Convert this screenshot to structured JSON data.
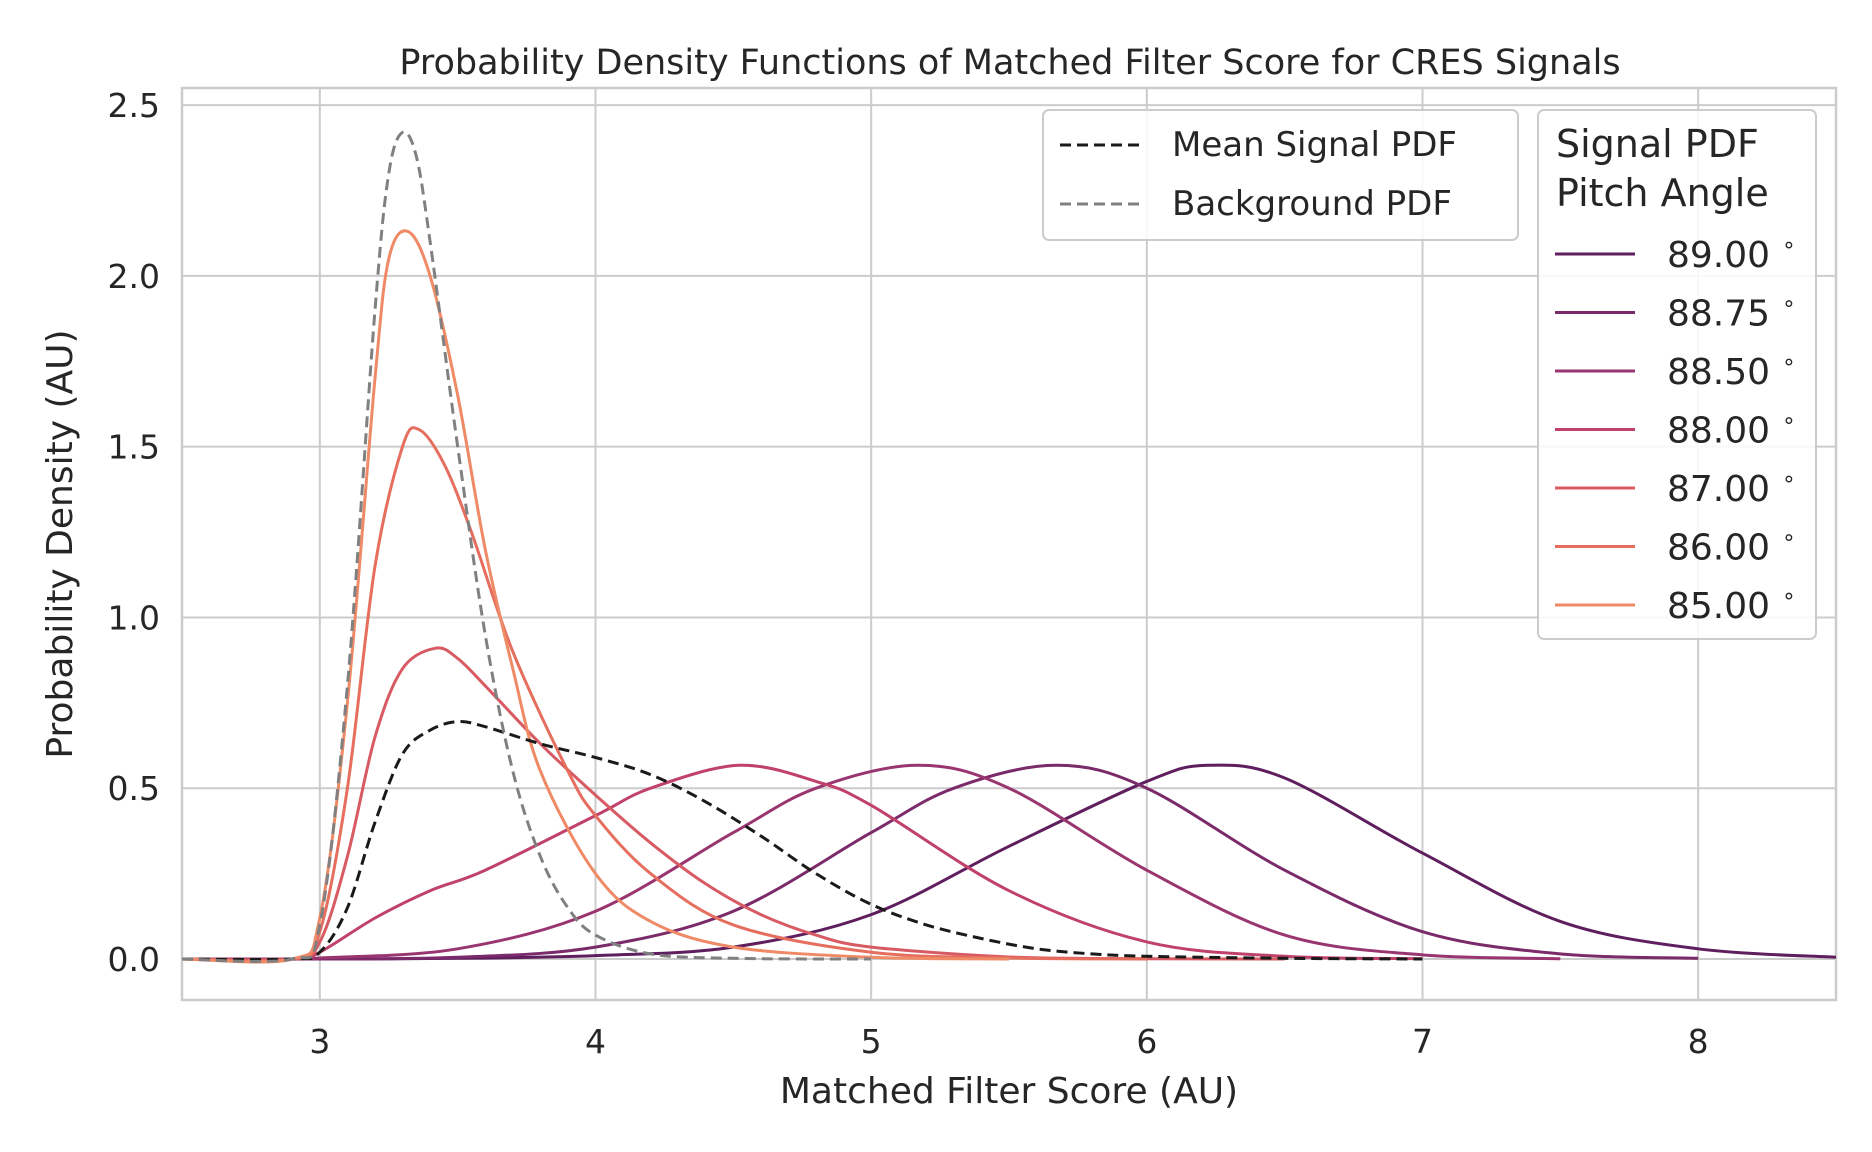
{
  "chart_data": {
    "type": "line",
    "title": "Probability Density Functions of Matched Filter Score for CRES Signals",
    "xlabel": "Matched Filter Score (AU)",
    "ylabel": "Probability Density (AU)",
    "xlim": [
      2.5,
      8.5
    ],
    "ylim": [
      -0.12,
      2.55
    ],
    "xticks": [
      3,
      4,
      5,
      6,
      7,
      8
    ],
    "xtick_labels": [
      "3",
      "4",
      "5",
      "6",
      "7",
      "8"
    ],
    "yticks": [
      0.0,
      0.5,
      1.0,
      1.5,
      2.0,
      2.5
    ],
    "ytick_labels": [
      "0.0",
      "0.5",
      "1.0",
      "1.5",
      "2.0",
      "2.5"
    ],
    "grid": true,
    "legends": [
      {
        "placement": "top-right (left of pitch-angle legend)",
        "entries": [
          "Mean Signal PDF",
          "Background PDF"
        ]
      },
      {
        "placement": "top-right",
        "title_line1": "Signal PDF",
        "title_line2": "Pitch Angle",
        "entries": [
          "89.00$^\\circ$",
          "88.75$^\\circ$",
          "88.50$^\\circ$",
          "88.00$^\\circ$",
          "87.00$^\\circ$",
          "86.00$^\\circ$",
          "85.00$^\\circ$"
        ],
        "entry_labels": [
          "89.00",
          "88.75",
          "88.50",
          "88.00",
          "87.00",
          "86.00",
          "85.00"
        ],
        "degree_symbol": "∘"
      }
    ],
    "series": [
      {
        "name": "Mean Signal PDF",
        "style": "dashed",
        "color": "#1a1a1a",
        "x": [
          2.5,
          2.9,
          3.0,
          3.1,
          3.2,
          3.3,
          3.4,
          3.5,
          3.6,
          3.8,
          4.0,
          4.2,
          4.4,
          4.6,
          4.8,
          5.0,
          5.2,
          5.4,
          5.6,
          5.8,
          6.0,
          6.5,
          7.0
        ],
        "y": [
          0.0,
          0.0,
          0.02,
          0.15,
          0.4,
          0.6,
          0.67,
          0.695,
          0.68,
          0.63,
          0.59,
          0.54,
          0.46,
          0.36,
          0.25,
          0.16,
          0.1,
          0.06,
          0.03,
          0.015,
          0.008,
          0.002,
          0.0
        ]
      },
      {
        "name": "Background PDF",
        "style": "dashed",
        "color": "#808080",
        "x": [
          2.5,
          2.9,
          3.0,
          3.1,
          3.2,
          3.25,
          3.3,
          3.35,
          3.4,
          3.5,
          3.6,
          3.7,
          3.8,
          3.9,
          4.0,
          4.2,
          4.5,
          5.0
        ],
        "y": [
          0.0,
          0.0,
          0.1,
          0.8,
          1.9,
          2.3,
          2.42,
          2.35,
          2.1,
          1.5,
          0.95,
          0.55,
          0.3,
          0.15,
          0.07,
          0.015,
          0.002,
          0.0
        ]
      },
      {
        "name": "89.00$^\\circ$",
        "style": "solid",
        "color": "#5f1e5e",
        "x": [
          2.5,
          3.0,
          3.5,
          4.0,
          4.5,
          5.0,
          5.5,
          6.0,
          6.22,
          6.5,
          7.0,
          7.5,
          8.0,
          8.5
        ],
        "y": [
          0.0,
          0.0,
          0.002,
          0.01,
          0.035,
          0.13,
          0.33,
          0.52,
          0.567,
          0.53,
          0.31,
          0.11,
          0.03,
          0.005
        ]
      },
      {
        "name": "88.75$^\\circ$",
        "style": "solid",
        "color": "#7b2a6a",
        "x": [
          2.5,
          3.0,
          3.5,
          4.0,
          4.5,
          5.0,
          5.3,
          5.67,
          6.0,
          6.5,
          7.0,
          7.5,
          8.0
        ],
        "y": [
          0.0,
          0.0,
          0.005,
          0.035,
          0.14,
          0.37,
          0.5,
          0.567,
          0.5,
          0.26,
          0.08,
          0.015,
          0.002
        ]
      },
      {
        "name": "88.50$^\\circ$",
        "style": "solid",
        "color": "#993670",
        "x": [
          2.5,
          2.9,
          3.0,
          3.5,
          4.0,
          4.5,
          4.8,
          5.17,
          5.5,
          6.0,
          6.5,
          7.0,
          7.5
        ],
        "y": [
          0.0,
          0.0,
          0.003,
          0.03,
          0.14,
          0.37,
          0.5,
          0.567,
          0.5,
          0.26,
          0.07,
          0.012,
          0.001
        ]
      },
      {
        "name": "88.00$^\\circ$",
        "style": "solid",
        "color": "#c0426b",
        "x": [
          2.5,
          2.9,
          3.0,
          3.2,
          3.4,
          3.6,
          4.0,
          4.2,
          4.52,
          4.8,
          5.0,
          5.5,
          6.0,
          6.5,
          7.0
        ],
        "y": [
          0.0,
          0.0,
          0.02,
          0.12,
          0.2,
          0.26,
          0.42,
          0.5,
          0.567,
          0.52,
          0.45,
          0.2,
          0.05,
          0.008,
          0.001
        ]
      },
      {
        "name": "87.00$^\\circ$",
        "style": "solid",
        "color": "#d85a63",
        "x": [
          2.5,
          2.9,
          3.0,
          3.1,
          3.2,
          3.3,
          3.42,
          3.5,
          3.6,
          3.8,
          4.0,
          4.2,
          4.4,
          4.6,
          4.8,
          5.0,
          5.5,
          6.0,
          6.5
        ],
        "y": [
          0.0,
          0.0,
          0.05,
          0.3,
          0.65,
          0.85,
          0.91,
          0.88,
          0.8,
          0.63,
          0.48,
          0.34,
          0.22,
          0.13,
          0.07,
          0.035,
          0.006,
          0.001,
          0.0
        ]
      },
      {
        "name": "86.00$^\\circ$",
        "style": "solid",
        "color": "#e66e5e",
        "x": [
          2.5,
          2.9,
          3.0,
          3.1,
          3.2,
          3.3,
          3.36,
          3.45,
          3.55,
          3.7,
          3.9,
          4.0,
          4.2,
          4.5,
          5.0,
          5.5,
          6.0
        ],
        "y": [
          0.0,
          0.0,
          0.08,
          0.5,
          1.15,
          1.5,
          1.55,
          1.45,
          1.25,
          0.9,
          0.55,
          0.42,
          0.25,
          0.1,
          0.02,
          0.003,
          0.0
        ]
      },
      {
        "name": "85.00$^\\circ$",
        "style": "solid",
        "color": "#ef8a66",
        "x": [
          2.5,
          2.9,
          3.0,
          3.1,
          3.2,
          3.25,
          3.32,
          3.4,
          3.5,
          3.6,
          3.7,
          3.8,
          4.0,
          4.2,
          4.5,
          5.0,
          5.5
        ],
        "y": [
          0.0,
          0.0,
          0.12,
          0.75,
          1.7,
          2.05,
          2.13,
          2.0,
          1.65,
          1.2,
          0.85,
          0.55,
          0.25,
          0.11,
          0.035,
          0.005,
          0.0
        ]
      }
    ]
  }
}
